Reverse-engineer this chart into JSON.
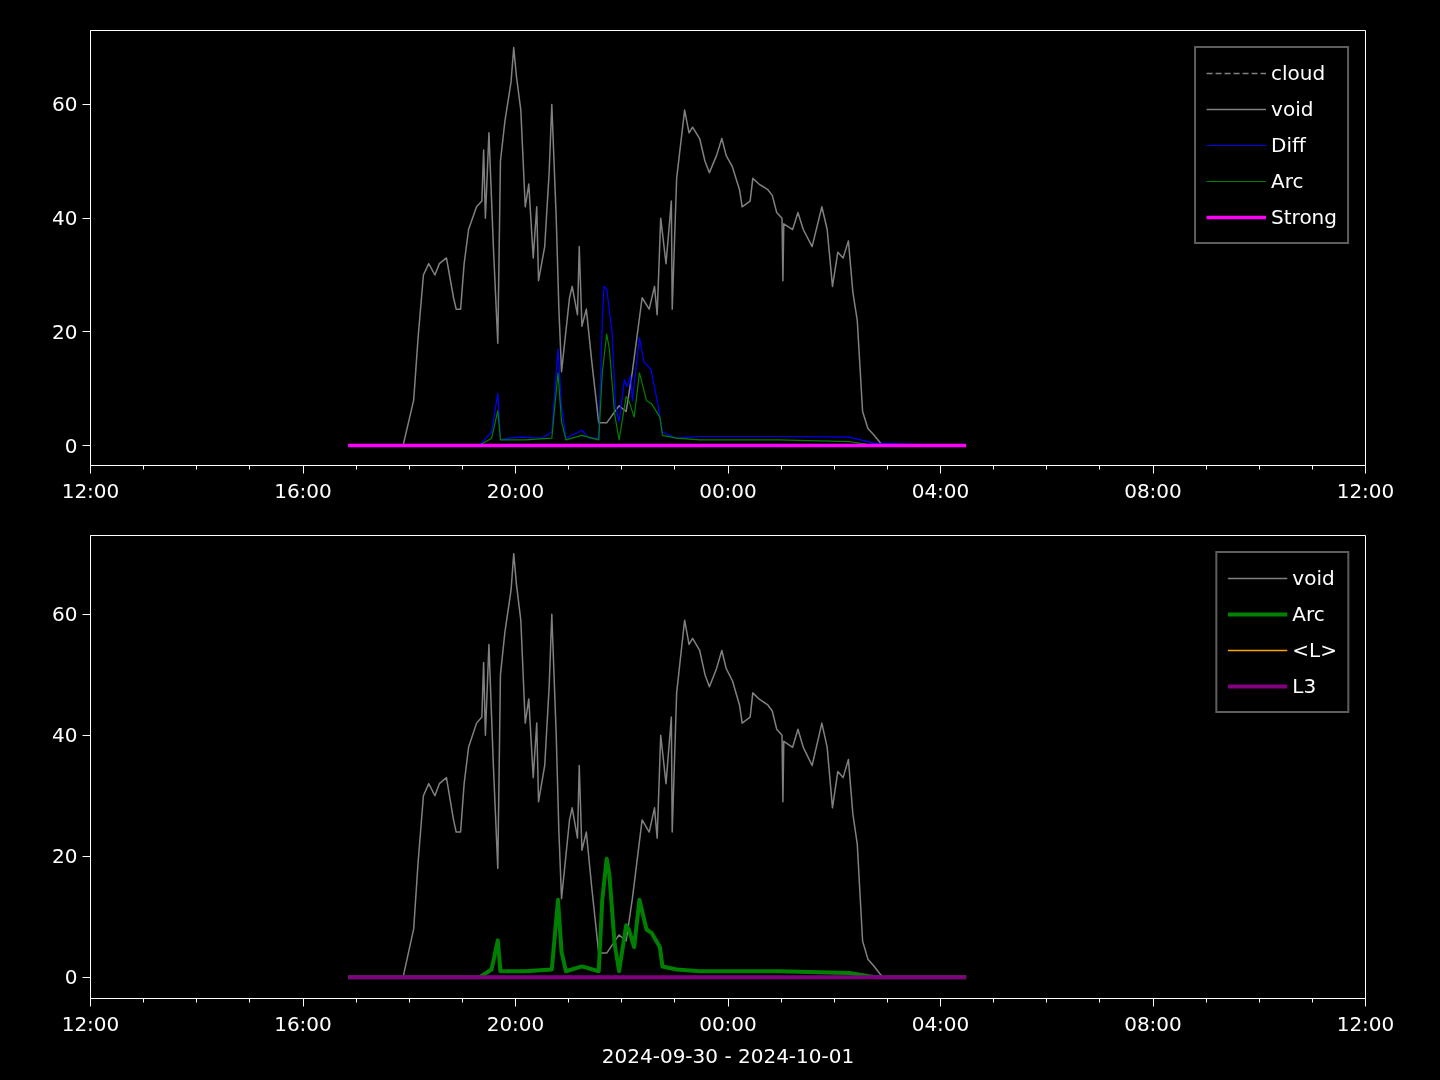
{
  "chart_data": [
    {
      "type": "line",
      "xlim": [
        "2024-09-30T12:00",
        "2024-10-01T12:00"
      ],
      "ylim": [
        -3.5,
        73
      ],
      "xticks": [
        {
          "value": "2024-09-30T12:00",
          "label": "12:00"
        },
        {
          "value": "2024-09-30T13:00",
          "label": null
        },
        {
          "value": "2024-09-30T14:00",
          "label": null
        },
        {
          "value": "2024-09-30T15:00",
          "label": null
        },
        {
          "value": "2024-09-30T16:00",
          "label": "16:00"
        },
        {
          "value": "2024-09-30T17:00",
          "label": null
        },
        {
          "value": "2024-09-30T18:00",
          "label": null
        },
        {
          "value": "2024-09-30T19:00",
          "label": null
        },
        {
          "value": "2024-09-30T20:00",
          "label": "20:00"
        },
        {
          "value": "2024-09-30T21:00",
          "label": null
        },
        {
          "value": "2024-09-30T22:00",
          "label": null
        },
        {
          "value": "2024-09-30T23:00",
          "label": null
        },
        {
          "value": "2024-10-01T00:00",
          "label": "00:00"
        },
        {
          "value": "2024-10-01T01:00",
          "label": null
        },
        {
          "value": "2024-10-01T02:00",
          "label": null
        },
        {
          "value": "2024-10-01T03:00",
          "label": null
        },
        {
          "value": "2024-10-01T04:00",
          "label": "04:00"
        },
        {
          "value": "2024-10-01T05:00",
          "label": null
        },
        {
          "value": "2024-10-01T06:00",
          "label": null
        },
        {
          "value": "2024-10-01T07:00",
          "label": null
        },
        {
          "value": "2024-10-01T08:00",
          "label": "08:00"
        },
        {
          "value": "2024-10-01T09:00",
          "label": null
        },
        {
          "value": "2024-10-01T10:00",
          "label": null
        },
        {
          "value": "2024-10-01T11:00",
          "label": null
        },
        {
          "value": "2024-10-01T12:00",
          "label": "12:00"
        }
      ],
      "yticks": [
        0,
        20,
        40,
        60
      ],
      "grid": false,
      "legend": "top right",
      "series": [
        {
          "name": "cloud",
          "color": "#808080",
          "line_style": "dashed"
        },
        {
          "name": "void",
          "color": "#808080",
          "x": [
            "2024-09-30T17:53",
            "2024-09-30T18:05",
            "2024-09-30T18:10",
            "2024-09-30T18:16",
            "2024-09-30T18:22",
            "2024-09-30T18:29",
            "2024-09-30T18:34",
            "2024-09-30T18:42",
            "2024-09-30T18:50",
            "2024-09-30T18:53",
            "2024-09-30T18:58",
            "2024-09-30T19:02",
            "2024-09-30T19:07",
            "2024-09-30T19:16",
            "2024-09-30T19:22",
            "2024-09-30T19:24",
            "2024-09-30T19:26",
            "2024-09-30T19:30",
            "2024-09-30T19:35",
            "2024-09-30T19:40",
            "2024-09-30T19:43",
            "2024-09-30T19:48",
            "2024-09-30T19:55",
            "2024-09-30T19:58",
            "2024-09-30T20:01",
            "2024-09-30T20:06",
            "2024-09-30T20:11",
            "2024-09-30T20:15",
            "2024-09-30T20:20",
            "2024-09-30T20:24",
            "2024-09-30T20:26",
            "2024-09-30T20:33",
            "2024-09-30T20:38",
            "2024-09-30T20:41",
            "2024-09-30T20:46",
            "2024-09-30T20:49",
            "2024-09-30T20:52",
            "2024-09-30T21:01",
            "2024-09-30T21:04",
            "2024-09-30T21:10",
            "2024-09-30T21:12",
            "2024-09-30T21:15",
            "2024-09-30T21:20",
            "2024-09-30T21:26",
            "2024-09-30T21:34",
            "2024-09-30T21:43",
            "2024-09-30T21:57",
            "2024-09-30T22:05",
            "2024-09-30T22:12",
            "2024-09-30T22:23",
            "2024-09-30T22:31",
            "2024-09-30T22:37",
            "2024-09-30T22:40",
            "2024-09-30T22:44",
            "2024-09-30T22:50",
            "2024-09-30T22:56",
            "2024-09-30T22:57",
            "2024-09-30T23:02",
            "2024-09-30T23:05",
            "2024-09-30T23:11",
            "2024-09-30T23:16",
            "2024-09-30T23:20",
            "2024-09-30T23:28",
            "2024-09-30T23:34",
            "2024-09-30T23:39",
            "2024-09-30T23:47",
            "2024-09-30T23:53",
            "2024-09-30T23:58",
            "2024-10-01T00:05",
            "2024-10-01T00:13",
            "2024-10-01T00:16",
            "2024-10-01T00:25",
            "2024-10-01T00:28",
            "2024-10-01T00:35",
            "2024-10-01T00:45",
            "2024-10-01T00:50",
            "2024-10-01T00:55",
            "2024-10-01T01:01",
            "2024-10-01T01:02",
            "2024-10-01T01:03",
            "2024-10-01T01:13",
            "2024-10-01T01:19",
            "2024-10-01T01:25",
            "2024-10-01T01:35",
            "2024-10-01T01:46",
            "2024-10-01T01:52",
            "2024-10-01T01:58",
            "2024-10-01T02:04",
            "2024-10-01T02:10",
            "2024-10-01T02:16",
            "2024-10-01T02:21",
            "2024-10-01T02:26",
            "2024-10-01T02:32",
            "2024-10-01T02:38",
            "2024-10-01T02:44",
            "2024-10-01T02:52",
            "2024-10-01T02:55"
          ],
          "values": [
            0,
            8,
            19,
            30,
            32,
            30,
            32,
            33,
            26,
            24,
            24,
            32,
            38,
            42,
            43,
            52,
            40,
            55,
            35,
            18,
            50,
            57,
            64,
            70,
            65,
            59,
            42,
            46,
            33,
            42,
            29,
            35,
            48,
            60,
            40,
            24,
            13,
            26,
            28,
            23,
            35,
            21,
            24,
            15,
            4,
            4,
            7,
            6,
            13,
            26,
            24,
            28,
            23,
            40,
            32,
            43,
            24,
            47,
            51,
            59,
            55,
            56,
            54,
            50,
            48,
            51,
            54,
            51,
            49,
            45,
            42,
            43,
            47,
            46,
            45,
            44,
            41,
            40,
            29,
            39,
            38,
            41,
            38,
            35,
            42,
            38,
            28,
            34,
            33,
            36,
            27,
            22,
            6,
            3,
            2,
            0.5,
            0
          ]
        },
        {
          "name": "Diff",
          "color": "#0000ff",
          "x": [
            "2024-09-30T16:51",
            "2024-09-30T19:19",
            "2024-09-30T19:33",
            "2024-09-30T19:40",
            "2024-09-30T19:43",
            "2024-09-30T19:52",
            "2024-09-30T20:07",
            "2024-09-30T20:30",
            "2024-09-30T20:41",
            "2024-09-30T20:48",
            "2024-09-30T20:52",
            "2024-09-30T20:57",
            "2024-09-30T21:15",
            "2024-09-30T21:23",
            "2024-09-30T21:34",
            "2024-09-30T21:38",
            "2024-09-30T21:40",
            "2024-09-30T21:43",
            "2024-09-30T21:49",
            "2024-09-30T21:53",
            "2024-09-30T21:57",
            "2024-09-30T22:03",
            "2024-09-30T22:06",
            "2024-09-30T22:10",
            "2024-09-30T22:12",
            "2024-09-30T22:20",
            "2024-09-30T22:25",
            "2024-09-30T22:33",
            "2024-09-30T22:40",
            "2024-09-30T22:46",
            "2024-09-30T23:02",
            "2024-09-30T23:28",
            "2024-10-01T00:58",
            "2024-10-01T02:17",
            "2024-10-01T02:46",
            "2024-10-01T04:29"
          ],
          "values": [
            0,
            0,
            2.4,
            9.2,
            1,
            1.3,
            1.5,
            1.3,
            2.4,
            17,
            7,
            1.3,
            2.7,
            1.3,
            1.3,
            22,
            28,
            27.5,
            20,
            7,
            4.2,
            11.6,
            10.4,
            12.3,
            7.9,
            19,
            14.7,
            13.4,
            7.9,
            2.4,
            1.3,
            1.6,
            1.6,
            1.5,
            0.4,
            0
          ]
        },
        {
          "name": "Arc",
          "color": "#008000",
          "x": [
            "2024-09-30T16:51",
            "2024-09-30T19:19",
            "2024-09-30T19:33",
            "2024-09-30T19:40",
            "2024-09-30T19:43",
            "2024-09-30T20:11",
            "2024-09-30T20:41",
            "2024-09-30T20:48",
            "2024-09-30T20:52",
            "2024-09-30T20:57",
            "2024-09-30T21:15",
            "2024-09-30T21:34",
            "2024-09-30T21:38",
            "2024-09-30T21:43",
            "2024-09-30T21:46",
            "2024-09-30T21:52",
            "2024-09-30T21:57",
            "2024-09-30T22:05",
            "2024-09-30T22:08",
            "2024-09-30T22:14",
            "2024-09-30T22:20",
            "2024-09-30T22:28",
            "2024-09-30T22:34",
            "2024-09-30T22:43",
            "2024-09-30T22:46",
            "2024-09-30T23:02",
            "2024-09-30T23:28",
            "2024-10-01T00:58",
            "2024-10-01T02:17",
            "2024-10-01T02:46",
            "2024-10-01T04:29"
          ],
          "values": [
            0,
            0,
            1.3,
            6.1,
            1,
            1,
            1.3,
            12.8,
            4.2,
            1,
            1.8,
            1,
            12.8,
            19.6,
            17,
            5.5,
            1,
            8.6,
            7.9,
            5,
            12.8,
            7.9,
            7.3,
            5,
            1.8,
            1.3,
            1,
            1,
            0.7,
            0,
            0
          ]
        },
        {
          "name": "Strong",
          "color": "#ff00ff",
          "x": [
            "2024-09-30T16:51",
            "2024-10-01T04:29"
          ],
          "values": [
            0,
            0
          ]
        }
      ]
    },
    {
      "type": "line",
      "xlim": [
        "2024-09-30T12:00",
        "2024-10-01T12:00"
      ],
      "ylim": [
        -3.5,
        73
      ],
      "xlabel": "2024-09-30 - 2024-10-01",
      "xticks": [
        {
          "value": "2024-09-30T12:00",
          "label": "12:00"
        },
        {
          "value": "2024-09-30T13:00",
          "label": null
        },
        {
          "value": "2024-09-30T14:00",
          "label": null
        },
        {
          "value": "2024-09-30T15:00",
          "label": null
        },
        {
          "value": "2024-09-30T16:00",
          "label": "16:00"
        },
        {
          "value": "2024-09-30T17:00",
          "label": null
        },
        {
          "value": "2024-09-30T18:00",
          "label": null
        },
        {
          "value": "2024-09-30T19:00",
          "label": null
        },
        {
          "value": "2024-09-30T20:00",
          "label": "20:00"
        },
        {
          "value": "2024-09-30T21:00",
          "label": null
        },
        {
          "value": "2024-09-30T22:00",
          "label": null
        },
        {
          "value": "2024-09-30T23:00",
          "label": null
        },
        {
          "value": "2024-10-01T00:00",
          "label": "00:00"
        },
        {
          "value": "2024-10-01T01:00",
          "label": null
        },
        {
          "value": "2024-10-01T02:00",
          "label": null
        },
        {
          "value": "2024-10-01T03:00",
          "label": null
        },
        {
          "value": "2024-10-01T04:00",
          "label": "04:00"
        },
        {
          "value": "2024-10-01T05:00",
          "label": null
        },
        {
          "value": "2024-10-01T06:00",
          "label": null
        },
        {
          "value": "2024-10-01T07:00",
          "label": null
        },
        {
          "value": "2024-10-01T08:00",
          "label": "08:00"
        },
        {
          "value": "2024-10-01T09:00",
          "label": null
        },
        {
          "value": "2024-10-01T10:00",
          "label": null
        },
        {
          "value": "2024-10-01T11:00",
          "label": null
        },
        {
          "value": "2024-10-01T12:00",
          "label": "12:00"
        }
      ],
      "yticks": [
        0,
        20,
        40,
        60
      ],
      "grid": false,
      "legend": "top right",
      "series": [
        {
          "name": "void",
          "color": "#808080",
          "x": [
            "2024-09-30T17:53",
            "2024-09-30T18:05",
            "2024-09-30T18:10",
            "2024-09-30T18:16",
            "2024-09-30T18:22",
            "2024-09-30T18:29",
            "2024-09-30T18:34",
            "2024-09-30T18:42",
            "2024-09-30T18:50",
            "2024-09-30T18:53",
            "2024-09-30T18:58",
            "2024-09-30T19:02",
            "2024-09-30T19:07",
            "2024-09-30T19:16",
            "2024-09-30T19:22",
            "2024-09-30T19:24",
            "2024-09-30T19:26",
            "2024-09-30T19:30",
            "2024-09-30T19:35",
            "2024-09-30T19:40",
            "2024-09-30T19:43",
            "2024-09-30T19:48",
            "2024-09-30T19:55",
            "2024-09-30T19:58",
            "2024-09-30T20:01",
            "2024-09-30T20:06",
            "2024-09-30T20:11",
            "2024-09-30T20:15",
            "2024-09-30T20:20",
            "2024-09-30T20:24",
            "2024-09-30T20:26",
            "2024-09-30T20:33",
            "2024-09-30T20:38",
            "2024-09-30T20:41",
            "2024-09-30T20:46",
            "2024-09-30T20:49",
            "2024-09-30T20:52",
            "2024-09-30T21:01",
            "2024-09-30T21:04",
            "2024-09-30T21:10",
            "2024-09-30T21:12",
            "2024-09-30T21:15",
            "2024-09-30T21:20",
            "2024-09-30T21:26",
            "2024-09-30T21:34",
            "2024-09-30T21:43",
            "2024-09-30T21:57",
            "2024-09-30T22:05",
            "2024-09-30T22:12",
            "2024-09-30T22:23",
            "2024-09-30T22:31",
            "2024-09-30T22:37",
            "2024-09-30T22:40",
            "2024-09-30T22:44",
            "2024-09-30T22:50",
            "2024-09-30T22:56",
            "2024-09-30T22:57",
            "2024-09-30T23:02",
            "2024-09-30T23:05",
            "2024-09-30T23:11",
            "2024-09-30T23:16",
            "2024-09-30T23:20",
            "2024-09-30T23:28",
            "2024-09-30T23:34",
            "2024-09-30T23:39",
            "2024-09-30T23:47",
            "2024-09-30T23:53",
            "2024-09-30T23:58",
            "2024-10-01T00:05",
            "2024-10-01T00:13",
            "2024-10-01T00:16",
            "2024-10-01T00:25",
            "2024-10-01T00:28",
            "2024-10-01T00:35",
            "2024-10-01T00:45",
            "2024-10-01T00:50",
            "2024-10-01T00:55",
            "2024-10-01T01:01",
            "2024-10-01T01:02",
            "2024-10-01T01:03",
            "2024-10-01T01:13",
            "2024-10-01T01:19",
            "2024-10-01T01:25",
            "2024-10-01T01:35",
            "2024-10-01T01:46",
            "2024-10-01T01:52",
            "2024-10-01T01:58",
            "2024-10-01T02:04",
            "2024-10-01T02:10",
            "2024-10-01T02:16",
            "2024-10-01T02:21",
            "2024-10-01T02:26",
            "2024-10-01T02:32",
            "2024-10-01T02:38",
            "2024-10-01T02:44",
            "2024-10-01T02:52",
            "2024-10-01T02:55"
          ],
          "values": [
            0,
            8,
            19,
            30,
            32,
            30,
            32,
            33,
            26,
            24,
            24,
            32,
            38,
            42,
            43,
            52,
            40,
            55,
            35,
            18,
            50,
            57,
            64,
            70,
            65,
            59,
            42,
            46,
            33,
            42,
            29,
            35,
            48,
            60,
            40,
            24,
            13,
            26,
            28,
            23,
            35,
            21,
            24,
            15,
            4,
            4,
            7,
            6,
            13,
            26,
            24,
            28,
            23,
            40,
            32,
            43,
            24,
            47,
            51,
            59,
            55,
            56,
            54,
            50,
            48,
            51,
            54,
            51,
            49,
            45,
            42,
            43,
            47,
            46,
            45,
            44,
            41,
            40,
            29,
            39,
            38,
            41,
            38,
            35,
            42,
            38,
            28,
            34,
            33,
            36,
            27,
            22,
            6,
            3,
            2,
            0.5,
            0
          ]
        },
        {
          "name": "Arc",
          "color": "#008000",
          "x": [
            "2024-09-30T16:51",
            "2024-09-30T19:19",
            "2024-09-30T19:33",
            "2024-09-30T19:40",
            "2024-09-30T19:43",
            "2024-09-30T20:11",
            "2024-09-30T20:41",
            "2024-09-30T20:48",
            "2024-09-30T20:52",
            "2024-09-30T20:57",
            "2024-09-30T21:15",
            "2024-09-30T21:34",
            "2024-09-30T21:38",
            "2024-09-30T21:43",
            "2024-09-30T21:46",
            "2024-09-30T21:52",
            "2024-09-30T21:57",
            "2024-09-30T22:05",
            "2024-09-30T22:08",
            "2024-09-30T22:14",
            "2024-09-30T22:20",
            "2024-09-30T22:28",
            "2024-09-30T22:34",
            "2024-09-30T22:43",
            "2024-09-30T22:46",
            "2024-09-30T23:02",
            "2024-09-30T23:28",
            "2024-10-01T00:58",
            "2024-10-01T02:17",
            "2024-10-01T02:46",
            "2024-10-01T04:29"
          ],
          "values": [
            0,
            0,
            1.3,
            6.1,
            1,
            1,
            1.3,
            12.8,
            4.2,
            1,
            1.8,
            1,
            12.8,
            19.6,
            17,
            5.5,
            1,
            8.6,
            7.9,
            5,
            12.8,
            7.9,
            7.3,
            5,
            1.8,
            1.3,
            1,
            1,
            0.7,
            0,
            0
          ]
        },
        {
          "name": "<L>",
          "color": "#ffa500"
        },
        {
          "name": "L3",
          "color": "#800080",
          "x": [
            "2024-09-30T16:51",
            "2024-10-01T04:29"
          ],
          "values": [
            0,
            0
          ]
        }
      ]
    }
  ]
}
